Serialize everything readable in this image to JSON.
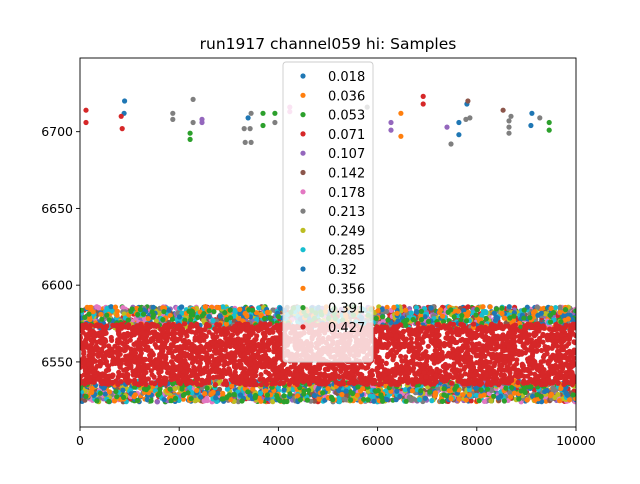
{
  "chart_data": {
    "type": "scatter",
    "title": "run1917 channel059 hi: Samples",
    "xlabel": "",
    "ylabel": "",
    "xlim": [
      0,
      10000
    ],
    "ylim": [
      6507.6,
      6748
    ],
    "xticks": [
      0,
      2000,
      4000,
      6000,
      8000,
      10000
    ],
    "yticks": [
      6550,
      6600,
      6650,
      6700
    ],
    "grid": false,
    "legend_placement": "upper center",
    "band": {
      "center": 6555,
      "core_range": [
        6535,
        6576
      ],
      "full_range": [
        6526,
        6588
      ]
    },
    "series": [
      {
        "name": "0.018",
        "color": "#1f77b4",
        "outliers": [
          [
            900,
            6720
          ],
          [
            890,
            6712
          ],
          [
            3390,
            6709
          ],
          [
            7640,
            6706
          ],
          [
            7640,
            6698
          ],
          [
            7800,
            6718
          ],
          [
            9110,
            6712
          ],
          [
            9090,
            6704
          ]
        ]
      },
      {
        "name": "0.036",
        "color": "#ff7f0e",
        "outliers": [
          [
            6470,
            6712
          ],
          [
            6470,
            6697
          ]
        ]
      },
      {
        "name": "0.053",
        "color": "#2ca02c",
        "outliers": [
          [
            2220,
            6699
          ],
          [
            2220,
            6695
          ],
          [
            3690,
            6712
          ],
          [
            3690,
            6704
          ],
          [
            3930,
            6712
          ],
          [
            9460,
            6706
          ],
          [
            9460,
            6701
          ]
        ]
      },
      {
        "name": "0.071",
        "color": "#d62728",
        "outliers": [
          [
            120,
            6714
          ],
          [
            120,
            6706
          ],
          [
            850,
            6702
          ],
          [
            830,
            6710
          ],
          [
            6920,
            6723
          ],
          [
            6920,
            6718
          ]
        ]
      },
      {
        "name": "0.107",
        "color": "#9467bd",
        "outliers": [
          [
            2460,
            6708
          ],
          [
            2460,
            6706
          ],
          [
            6270,
            6706
          ],
          [
            6270,
            6701
          ],
          [
            7400,
            6703
          ]
        ]
      },
      {
        "name": "0.142",
        "color": "#8c564b",
        "outliers": [
          [
            7820,
            6720
          ],
          [
            8530,
            6714
          ]
        ]
      },
      {
        "name": "0.178",
        "color": "#e377c2",
        "outliers": [
          [
            4230,
            6716
          ],
          [
            4230,
            6713
          ]
        ]
      },
      {
        "name": "0.213",
        "color": "#7f7f7f",
        "outliers": [
          [
            1870,
            6712
          ],
          [
            1870,
            6708
          ],
          [
            2280,
            6721
          ],
          [
            2280,
            6706
          ],
          [
            3310,
            6702
          ],
          [
            3430,
            6702
          ],
          [
            3330,
            6693
          ],
          [
            3450,
            6693
          ],
          [
            3450,
            6712
          ],
          [
            3930,
            6706
          ],
          [
            5790,
            6716
          ],
          [
            7480,
            6692
          ],
          [
            7780,
            6708
          ],
          [
            7860,
            6709
          ],
          [
            8650,
            6707
          ],
          [
            8650,
            6703
          ],
          [
            8650,
            6699
          ],
          [
            8690,
            6710
          ],
          [
            9270,
            6709
          ]
        ]
      },
      {
        "name": "0.249",
        "color": "#bcbd22",
        "outliers": []
      },
      {
        "name": "0.285",
        "color": "#17becf",
        "outliers": []
      },
      {
        "name": "0.32",
        "color": "#1f77b4",
        "outliers": []
      },
      {
        "name": "0.356",
        "color": "#ff7f0e",
        "outliers": []
      },
      {
        "name": "0.391",
        "color": "#2ca02c",
        "outliers": []
      },
      {
        "name": "0.427",
        "color": "#d62728",
        "outliers": []
      }
    ]
  }
}
